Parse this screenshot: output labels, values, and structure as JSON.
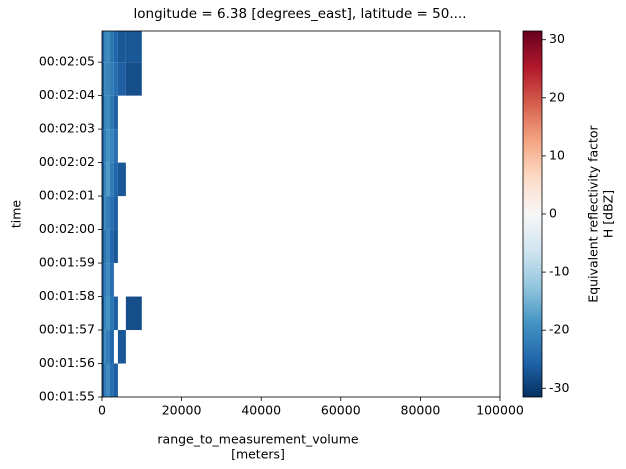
{
  "chart_data": {
    "type": "heatmap",
    "title": "longitude = 6.38 [degrees_east], latitude = 50....",
    "x_label": [
      "range_to_measurement_volume",
      "[meters]"
    ],
    "y_label": "time",
    "xlim": [
      0,
      100000
    ],
    "xticks": [
      0,
      20000,
      40000,
      60000,
      80000,
      100000
    ],
    "ylim": [
      "00:01:55",
      "00:02:05.93"
    ],
    "yticks": [
      "00:01:55",
      "00:01:56",
      "00:01:57",
      "00:01:58",
      "00:01:59",
      "00:02:00",
      "00:02:01",
      "00:02:02",
      "00:02:03",
      "00:02:04",
      "00:02:05"
    ],
    "x": [
      0,
      500,
      1000,
      2000,
      3000,
      4000,
      6000,
      10000
    ],
    "y": [
      "00:01:55",
      "00:01:56",
      "00:01:57",
      "00:01:58",
      "00:01:59",
      "00:02:00",
      "00:02:01",
      "00:02:02",
      "00:02:03",
      "00:02:04",
      "00:02:05",
      "00:02:05.93"
    ],
    "values": [
      [
        -28,
        -22,
        -20,
        -24,
        -26,
        null,
        null
      ],
      [
        -27,
        -20,
        -22,
        -25,
        null,
        -27,
        null
      ],
      [
        -28,
        -21,
        -19,
        -23,
        -26,
        null,
        -28
      ],
      [
        -26,
        -22,
        -20,
        -24,
        null,
        null,
        null
      ],
      [
        -27,
        -23,
        -21,
        -25,
        -27,
        null,
        null
      ],
      [
        -28,
        -20,
        -22,
        -24,
        -26,
        null,
        null
      ],
      [
        -27,
        -21,
        -18,
        -22,
        -25,
        -27,
        null
      ],
      [
        -26,
        -22,
        -19,
        -21,
        -24,
        null,
        null
      ],
      [
        -28,
        -21,
        -20,
        -23,
        -26,
        null,
        null
      ],
      [
        -27,
        -20,
        -21,
        -22,
        -24,
        -26,
        -28
      ],
      [
        -26,
        -21,
        -20,
        -23,
        -25,
        -27,
        -27
      ]
    ],
    "colormap": [
      "#053061",
      "#2166ac",
      "#4393c3",
      "#92c5de",
      "#d1e5f0",
      "#f7f7f7",
      "#fddbc7",
      "#f4a582",
      "#d6604d",
      "#b2182b",
      "#67001f"
    ],
    "clim": [
      -31.5,
      31.5
    ],
    "cticks": [
      -30,
      -20,
      -10,
      0,
      10,
      20,
      30
    ],
    "colorbar_label": [
      "Equivalent reflectivity factor",
      "H [dBZ]"
    ]
  }
}
